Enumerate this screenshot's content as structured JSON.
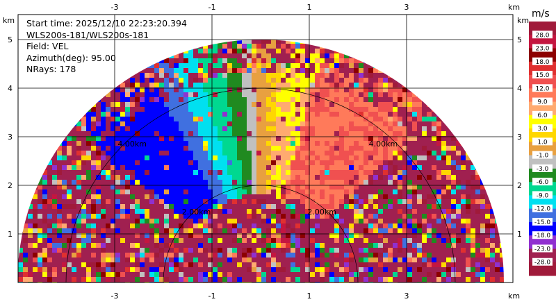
{
  "chart_data": {
    "type": "heatmap",
    "subtype": "radar-rhi-sector",
    "info": {
      "start_time": "Start time: 2025/12/10 22:23:20.394",
      "site": "WLS200s-181/WLS200s-181",
      "field": "Field: VEL",
      "azimuth": "Azimuth(deg): 95.00",
      "nrays": "NRays: 178"
    },
    "axes": {
      "x_unit": "km",
      "y_unit": "km",
      "xlim": [
        -5.5,
        5.5
      ],
      "ylim": [
        0,
        6
      ],
      "x_ticks": [
        -3,
        -1,
        1,
        3
      ],
      "y_ticks": [
        1,
        2,
        3,
        4,
        5
      ],
      "grid": true
    },
    "range_rings": [
      {
        "range_km": 2,
        "label": "2.00km"
      },
      {
        "range_km": 4,
        "label": "4.00km"
      }
    ],
    "colorbar": {
      "unit": "m/s",
      "labels": [
        "28.0",
        "23.0",
        "18.0",
        "15.0",
        "12.0",
        "9.0",
        "6.0",
        "3.0",
        "1.0",
        "-1.0",
        "-3.0",
        "-6.0",
        "-9.0",
        "-12.0",
        "-15.0",
        "-18.0",
        "-23.0",
        "-28.0"
      ],
      "colors": [
        "#a01a3a",
        "#c41640",
        "#8c0000",
        "#e03030",
        "#f05050",
        "#ff7a5a",
        "#ffaa70",
        "#ffff00",
        "#ffd700",
        "#e8a040",
        "#c0c0c0",
        "#208a20",
        "#00d890",
        "#00e0f0",
        "#4070e0",
        "#0000ff",
        "#9030d0",
        "#a02050",
        "#a01a3a"
      ]
    },
    "data_extent": {
      "max_range_km": 5,
      "elevation_deg": [
        0,
        180
      ]
    },
    "sectors": [
      {
        "from_deg": 45,
        "to_deg": 75,
        "velocity": 12
      },
      {
        "from_deg": 75,
        "to_deg": 85,
        "velocity": 6
      },
      {
        "from_deg": 85,
        "to_deg": 88,
        "velocity": 1
      },
      {
        "from_deg": 88,
        "to_deg": 92,
        "velocity": 0
      },
      {
        "from_deg": 92,
        "to_deg": 95,
        "velocity": -2
      },
      {
        "from_deg": 95,
        "to_deg": 100,
        "velocity": -5
      },
      {
        "from_deg": 100,
        "to_deg": 106,
        "velocity": -8
      },
      {
        "from_deg": 106,
        "to_deg": 112,
        "velocity": -11
      },
      {
        "from_deg": 112,
        "to_deg": 118,
        "velocity": -14
      },
      {
        "from_deg": 118,
        "to_deg": 140,
        "velocity": -17
      }
    ]
  }
}
